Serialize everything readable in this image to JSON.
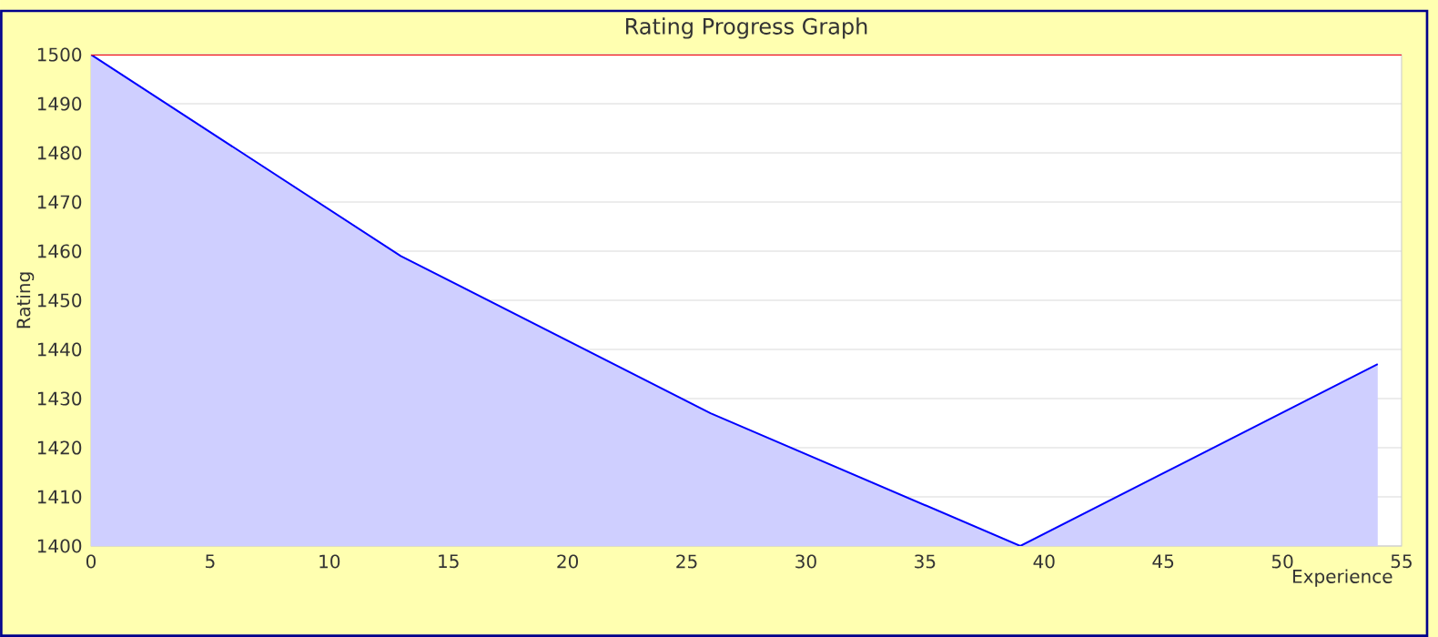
{
  "chart_data": {
    "type": "area",
    "title": "Rating Progress Graph",
    "xlabel": "Experience",
    "ylabel": "Rating",
    "x": [
      0,
      13,
      26,
      39,
      54
    ],
    "series": [
      {
        "color": "#0000ff",
        "values": [
          1500,
          1459,
          1427,
          1400,
          1437
        ]
      }
    ],
    "xlim": [
      0,
      55
    ],
    "ylim": [
      1400,
      1500
    ],
    "xticks": [
      0,
      5,
      10,
      15,
      20,
      25,
      30,
      35,
      40,
      45,
      50,
      55
    ],
    "yticks": [
      1400,
      1410,
      1420,
      1430,
      1440,
      1450,
      1460,
      1470,
      1480,
      1490,
      1500
    ],
    "grid": "y",
    "marker": "none",
    "ref_lines": [
      {
        "axis": "y",
        "value": 1500,
        "color": "#ff0000"
      }
    ]
  }
}
